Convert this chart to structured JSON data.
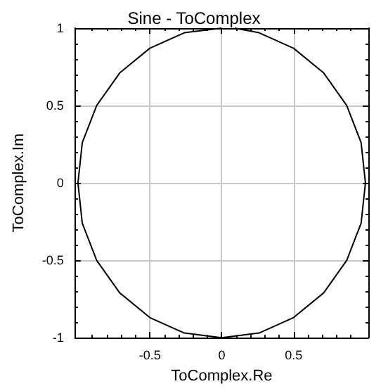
{
  "chart_data": {
    "type": "line",
    "title": "Sine - ToComplex",
    "xlabel": "ToComplex.Re",
    "ylabel": "ToComplex.Im",
    "series": [
      {
        "color": "#000000",
        "x": [
          0,
          -0.26,
          -0.5,
          -0.71,
          -0.87,
          -0.97,
          -1,
          -0.97,
          -0.87,
          -0.71,
          -0.5,
          -0.26,
          0,
          0.26,
          0.5,
          0.71,
          0.87,
          0.97,
          1,
          0.97,
          0.87,
          0.71,
          0.5,
          0.26,
          0.09
        ],
        "values": [
          1,
          0.97,
          0.87,
          0.71,
          0.5,
          0.26,
          0,
          -0.26,
          -0.5,
          -0.71,
          -0.87,
          -0.97,
          -1,
          -0.97,
          -0.87,
          -0.71,
          -0.5,
          -0.26,
          0,
          0.26,
          0.5,
          0.71,
          0.87,
          0.97,
          1
        ]
      }
    ],
    "xlim": [
      -1.02,
      1.02
    ],
    "xticks": [
      -0.5,
      0,
      0.5
    ],
    "ylim": [
      -1,
      1
    ],
    "yticks": [
      -1,
      -0.5,
      0,
      0.5,
      1
    ],
    "grid": true,
    "marker": "none",
    "line_style": "solid"
  }
}
